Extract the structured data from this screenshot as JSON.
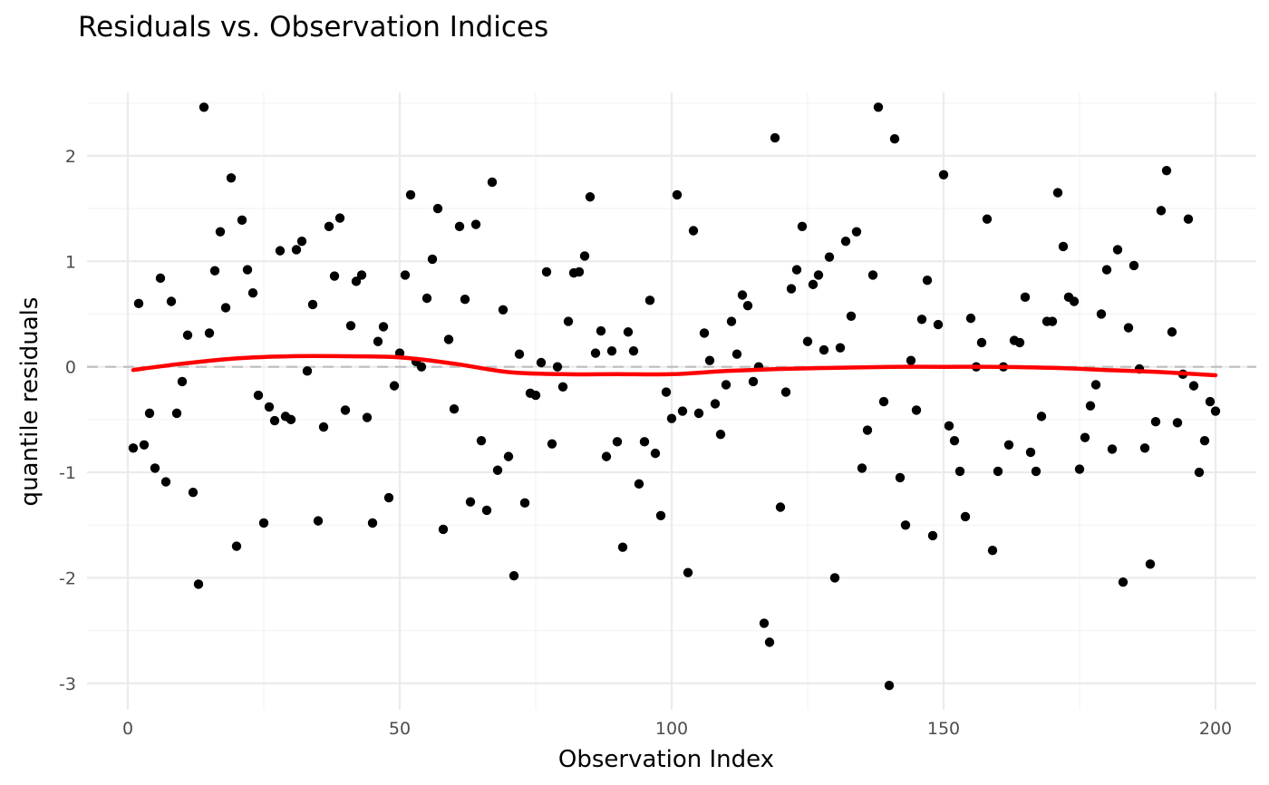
{
  "chart_data": {
    "type": "scatter",
    "title": "Residuals vs. Observation Indices",
    "xlabel": "Observation Index",
    "ylabel": "quantile residuals",
    "xlim": [
      -7.5,
      207.5
    ],
    "ylim": [
      -3.25,
      2.6
    ],
    "x_ticks": [
      0,
      50,
      100,
      150,
      200
    ],
    "y_ticks": [
      -3,
      -2,
      -1,
      0,
      1,
      2
    ],
    "x_tick_labels": [
      "0",
      "50",
      "100",
      "150",
      "200"
    ],
    "y_tick_labels": [
      "-3",
      "-2",
      "-1",
      "0",
      "1",
      "2"
    ],
    "grid": true,
    "legend": "none",
    "reference_line": {
      "y": 0,
      "style": "dashed",
      "color": "#bdbdbd"
    },
    "point_color": "#000000",
    "smooth_color": "#ff0000",
    "points": {
      "x": [
        1,
        2,
        3,
        4,
        5,
        6,
        7,
        8,
        9,
        10,
        11,
        12,
        13,
        14,
        15,
        16,
        17,
        18,
        19,
        20,
        21,
        22,
        23,
        24,
        25,
        26,
        27,
        28,
        29,
        30,
        31,
        32,
        33,
        34,
        35,
        36,
        37,
        38,
        39,
        40,
        41,
        42,
        43,
        44,
        45,
        46,
        47,
        48,
        49,
        50,
        51,
        52,
        53,
        54,
        55,
        56,
        57,
        58,
        59,
        60,
        61,
        62,
        63,
        64,
        65,
        66,
        67,
        68,
        69,
        70,
        71,
        72,
        73,
        74,
        75,
        76,
        77,
        78,
        79,
        80,
        81,
        82,
        83,
        84,
        85,
        86,
        87,
        88,
        89,
        90,
        91,
        92,
        93,
        94,
        95,
        96,
        97,
        98,
        99,
        100,
        101,
        102,
        103,
        104,
        105,
        106,
        107,
        108,
        109,
        110,
        111,
        112,
        113,
        114,
        115,
        116,
        117,
        118,
        119,
        120,
        121,
        122,
        123,
        124,
        125,
        126,
        127,
        128,
        129,
        130,
        131,
        132,
        133,
        134,
        135,
        136,
        137,
        138,
        139,
        140,
        141,
        142,
        143,
        144,
        145,
        146,
        147,
        148,
        149,
        150,
        151,
        152,
        153,
        154,
        155,
        156,
        157,
        158,
        159,
        160,
        161,
        162,
        163,
        164,
        165,
        166,
        167,
        168,
        169,
        170,
        171,
        172,
        173,
        174,
        175,
        176,
        177,
        178,
        179,
        180,
        181,
        182,
        183,
        184,
        185,
        186,
        187,
        188,
        189,
        190,
        191,
        192,
        193,
        194,
        195,
        196,
        197,
        198,
        199,
        200
      ],
      "y": [
        -0.77,
        0.6,
        -0.74,
        -0.44,
        -0.96,
        0.84,
        -1.09,
        0.62,
        -0.44,
        -0.14,
        0.3,
        -1.19,
        -2.06,
        2.46,
        0.32,
        0.91,
        1.28,
        0.56,
        1.79,
        -1.7,
        1.39,
        0.92,
        0.7,
        -0.27,
        -1.48,
        -0.38,
        -0.51,
        1.1,
        -0.47,
        -0.5,
        1.11,
        1.19,
        -0.04,
        0.59,
        -1.46,
        -0.57,
        1.33,
        0.86,
        1.41,
        -0.41,
        0.39,
        0.81,
        0.87,
        -0.48,
        -1.48,
        0.24,
        0.38,
        -1.24,
        -0.18,
        0.13,
        0.87,
        1.63,
        0.05,
        0.0,
        0.65,
        1.02,
        1.5,
        -1.54,
        0.26,
        -0.4,
        1.33,
        0.64,
        -1.28,
        1.35,
        -0.7,
        -1.36,
        1.75,
        -0.98,
        0.54,
        -0.85,
        -1.98,
        0.12,
        -1.29,
        -0.25,
        -0.27,
        0.04,
        0.9,
        -0.73,
        0.0,
        -0.19,
        0.43,
        0.89,
        0.9,
        1.05,
        1.61,
        0.13,
        0.34,
        -0.85,
        0.15,
        -0.71,
        -1.71,
        0.33,
        0.15,
        -1.11,
        -0.71,
        0.63,
        -0.82,
        -1.41,
        -0.24,
        -0.49,
        1.63,
        -0.42,
        -1.95,
        1.29,
        -0.44,
        0.32,
        0.06,
        -0.35,
        -0.64,
        -0.17,
        0.43,
        0.12,
        0.68,
        0.58,
        -0.14,
        0.0,
        -2.43,
        -2.61,
        2.17,
        -1.33,
        -0.24,
        0.74,
        0.92,
        1.33,
        0.24,
        0.78,
        0.87,
        0.16,
        1.04,
        -2.0,
        0.18,
        1.19,
        0.48,
        1.28,
        -0.96,
        -0.6,
        0.87,
        2.46,
        -0.33,
        -3.02,
        2.16,
        -1.05,
        -1.5,
        0.06,
        -0.41,
        0.45,
        0.82,
        -1.6,
        0.4,
        1.82,
        -0.56,
        -0.7,
        -0.99,
        -1.42,
        0.46,
        0.0,
        0.23,
        1.4,
        -1.74,
        -0.99,
        0.0,
        -0.74,
        0.25,
        0.23,
        0.66,
        -0.81,
        -0.99,
        -0.47,
        0.43,
        0.43,
        1.65,
        1.14,
        0.66,
        0.62,
        -0.97,
        -0.67,
        -0.37,
        -0.17,
        0.5,
        0.92,
        -0.78,
        1.11,
        -2.04,
        0.37,
        0.96,
        -0.02,
        -0.77,
        -1.87,
        -0.52,
        1.48,
        1.86,
        0.33,
        -0.53,
        -0.07,
        1.4,
        -0.18,
        -1.0,
        -0.7,
        -0.33,
        -0.42
      ]
    },
    "smooth": {
      "x": [
        1,
        10,
        20,
        30,
        40,
        50,
        60,
        70,
        80,
        90,
        100,
        110,
        120,
        130,
        140,
        150,
        160,
        170,
        180,
        190,
        200
      ],
      "y": [
        -0.03,
        0.03,
        0.08,
        0.1,
        0.1,
        0.09,
        0.03,
        -0.05,
        -0.07,
        -0.07,
        -0.07,
        -0.04,
        -0.02,
        -0.01,
        0.0,
        0.0,
        0.0,
        -0.01,
        -0.03,
        -0.05,
        -0.08
      ]
    }
  }
}
